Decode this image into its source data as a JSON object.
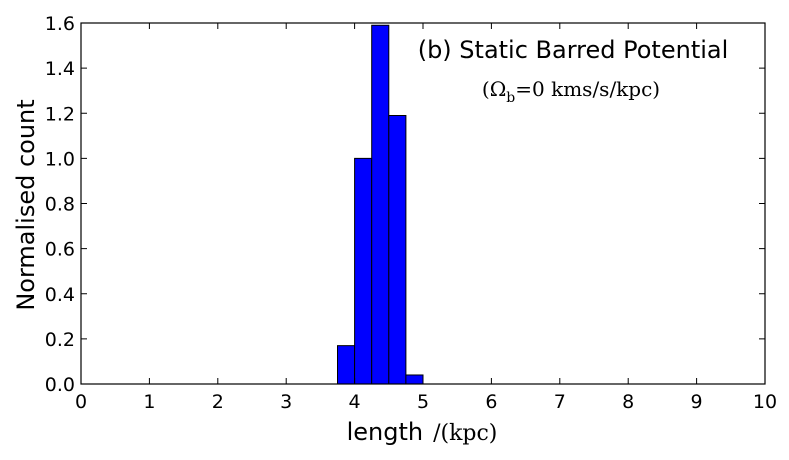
{
  "chart_data": {
    "type": "bar",
    "title": "(b) Static Barred Potential",
    "subtitle": "(Ω_b =0  kms/s/kpc)",
    "subtitle_parts": {
      "open": "(Ω",
      "sub": "b",
      "rest": "=0  kms/s/kpc)"
    },
    "xlabel": "length",
    "xlabel_unit": "/(kpc)",
    "ylabel": "Normalised count",
    "xlim": [
      0,
      10
    ],
    "ylim": [
      0,
      1.6
    ],
    "xticks": [
      "0",
      "1",
      "2",
      "3",
      "4",
      "5",
      "6",
      "7",
      "8",
      "9",
      "10"
    ],
    "yticks": [
      "0.0",
      "0.2",
      "0.4",
      "0.6",
      "0.8",
      "1.0",
      "1.2",
      "1.4",
      "1.6"
    ],
    "bar_color": "#0000ff",
    "bars": [
      {
        "x0": 3.75,
        "x1": 4.0,
        "value": 0.17
      },
      {
        "x0": 4.0,
        "x1": 4.25,
        "value": 1.0
      },
      {
        "x0": 4.25,
        "x1": 4.5,
        "value": 1.59
      },
      {
        "x0": 4.5,
        "x1": 4.75,
        "value": 1.19
      },
      {
        "x0": 4.75,
        "x1": 5.0,
        "value": 0.04
      }
    ],
    "grid": false
  }
}
